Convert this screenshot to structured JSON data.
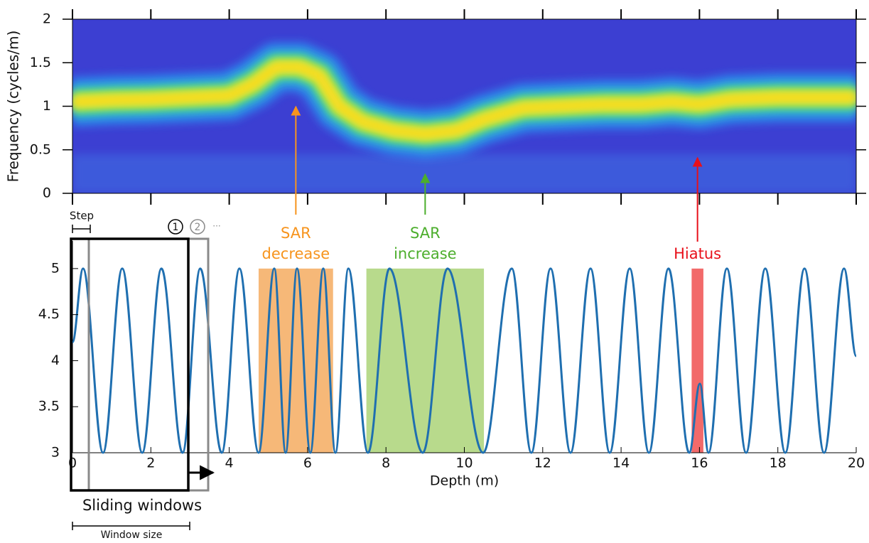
{
  "chart_data": [
    {
      "type": "heatmap",
      "ylabel": "Frequency (cycles/m)",
      "xlim": [
        0,
        20
      ],
      "xticks": [
        0,
        2,
        4,
        6,
        8,
        10,
        12,
        14,
        16,
        18,
        20
      ],
      "ylim": [
        0,
        2
      ],
      "yticks": [
        0,
        0.5,
        1,
        1.5,
        2
      ],
      "x": [
        0,
        1,
        2,
        3,
        4,
        4.6,
        5.2,
        5.8,
        6.3,
        6.8,
        7.4,
        8.2,
        9,
        9.8,
        10.5,
        11.5,
        12.5,
        13.5,
        14.5,
        15.3,
        16,
        16.8,
        18,
        19,
        20
      ],
      "values": [
        1.05,
        1.07,
        1.08,
        1.1,
        1.12,
        1.25,
        1.45,
        1.45,
        1.35,
        1.0,
        0.82,
        0.72,
        0.68,
        0.72,
        0.85,
        0.98,
        1.0,
        1.02,
        1.02,
        1.05,
        1.02,
        1.08,
        1.1,
        1.1,
        1.1
      ]
    },
    {
      "type": "line",
      "xlabel": "Depth (m)",
      "color": "#1f6fb0",
      "xlim": [
        0,
        20
      ],
      "xticks": [
        0,
        2,
        4,
        6,
        8,
        10,
        12,
        14,
        16,
        18,
        20
      ],
      "ylim": [
        3,
        5.3
      ],
      "yticks": [
        3,
        3.5,
        4,
        4.5,
        5
      ],
      "x": [
        0,
        0.27,
        0.78,
        1.27,
        1.78,
        2.27,
        2.81,
        3.26,
        3.81,
        4.26,
        4.75,
        5.15,
        5.44,
        5.73,
        6.07,
        6.4,
        6.71,
        7.04,
        7.54,
        8.09,
        8.94,
        9.57,
        10.48,
        11.21,
        11.71,
        12.2,
        12.71,
        13.22,
        13.71,
        14.22,
        14.71,
        15.21,
        15.74,
        16.01,
        16.23,
        16.7,
        17.19,
        17.68,
        18.19,
        18.68,
        19.18,
        19.69,
        20
      ],
      "values": [
        4.2,
        5,
        3,
        5,
        3,
        5,
        3,
        5,
        3,
        5,
        3,
        5,
        3,
        5,
        3,
        5,
        3,
        5,
        3,
        5,
        3,
        5,
        3,
        5,
        3,
        5,
        3,
        5,
        3,
        5,
        3,
        5,
        3,
        3.75,
        3,
        5,
        3,
        5,
        3,
        5,
        3,
        5,
        4.05
      ],
      "highlights": [
        {
          "range": [
            4.75,
            6.65
          ],
          "span": [
            3,
            5
          ],
          "color": "#f6b878",
          "label_color": "#f7941d",
          "label": [
            "SAR",
            "decrease"
          ]
        },
        {
          "range": [
            7.5,
            10.5
          ],
          "span": [
            3,
            5
          ],
          "color": "#b8da8c",
          "label_color": "#4cae2c",
          "label": [
            "SAR",
            "increase"
          ]
        },
        {
          "range": [
            15.8,
            16.1
          ],
          "span": [
            3,
            5
          ],
          "color": "#f26a6a",
          "label_color": "#e8101a",
          "label": [
            "Hiatus"
          ]
        }
      ],
      "window_labels": {
        "step": "Step",
        "first": "1",
        "second": "2",
        "more": "...",
        "title": "Sliding windows",
        "size": "Window size"
      }
    }
  ]
}
